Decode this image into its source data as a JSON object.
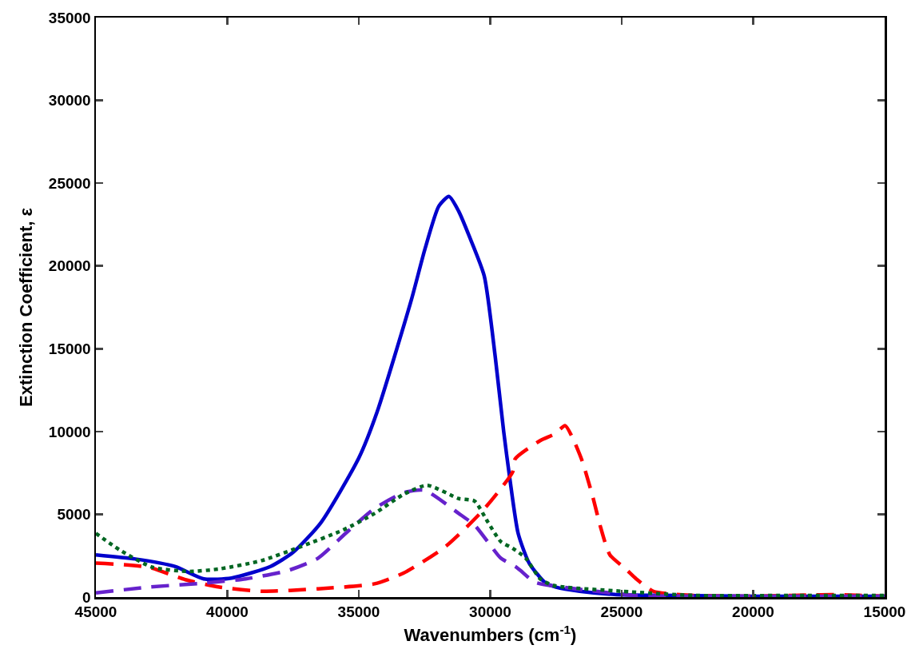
{
  "chart_data": {
    "type": "line",
    "xlabel": "Wavenumbers (cm$^{-1}$)",
    "ylabel": "Extinction Coefficient, ε",
    "xlim": [
      45000,
      15000
    ],
    "xticks": [
      45000,
      40000,
      35000,
      30000,
      25000,
      20000,
      15000
    ],
    "ylim": [
      0,
      35000
    ],
    "yticks": [
      0,
      5000,
      10000,
      15000,
      20000,
      25000,
      30000,
      35000
    ],
    "grid": false,
    "marker": "none",
    "series": [
      {
        "color": "#0000cc",
        "line_style": "solid",
        "x": [
          45000,
          43500,
          42000,
          40900,
          39840,
          38360,
          37500,
          36440,
          35000,
          34300,
          33010,
          32470,
          31960,
          31570,
          31200,
          30800,
          30230,
          29810,
          29490,
          29260,
          28940,
          28520,
          27900,
          27500,
          26600,
          25200,
          23000,
          20000,
          17500,
          15000
        ],
        "values": [
          2550,
          2300,
          1850,
          1100,
          1150,
          1850,
          2700,
          4500,
          8400,
          11200,
          17900,
          21100,
          23600,
          24200,
          23300,
          21800,
          19400,
          14500,
          10000,
          7200,
          3850,
          2050,
          850,
          600,
          350,
          150,
          100,
          50,
          50,
          50
        ]
      },
      {
        "color": "#ff0000",
        "line_style": "dashed",
        "x": [
          45000,
          43000,
          41600,
          40300,
          38700,
          36550,
          34400,
          33300,
          31700,
          30300,
          29150,
          29050,
          28100,
          27550,
          27150,
          26850,
          26500,
          26100,
          25800,
          25450,
          24850,
          24450,
          23800,
          22300,
          20000,
          17000,
          15000
        ],
        "values": [
          2050,
          1800,
          1050,
          600,
          350,
          500,
          800,
          1450,
          3050,
          5200,
          7550,
          8350,
          9450,
          9850,
          10350,
          9550,
          8200,
          6050,
          4200,
          2550,
          1700,
          1100,
          350,
          100,
          50,
          150,
          50
        ]
      },
      {
        "color": "#6622cc",
        "line_style": "dashed",
        "x": [
          45000,
          43000,
          40850,
          39300,
          37700,
          36550,
          35500,
          34400,
          33300,
          32500,
          31200,
          30600,
          30100,
          29600,
          29050,
          28850,
          28300,
          26500,
          24450,
          22000,
          18000,
          15000
        ],
        "values": [
          250,
          600,
          850,
          1100,
          1600,
          2350,
          3850,
          5350,
          6300,
          6450,
          5050,
          4350,
          3350,
          2350,
          1850,
          1600,
          900,
          450,
          100,
          50,
          50,
          50
        ]
      },
      {
        "color": "#006622",
        "line_style": "dotted",
        "x": [
          45000,
          44100,
          42850,
          41450,
          40300,
          38700,
          37200,
          35600,
          34400,
          33300,
          32400,
          31200,
          30600,
          30100,
          29600,
          29150,
          28650,
          28100,
          27600,
          25000,
          22250,
          18000,
          15000
        ],
        "values": [
          3850,
          2850,
          1800,
          1550,
          1700,
          2200,
          3050,
          4050,
          5050,
          6200,
          6750,
          5950,
          5800,
          4550,
          3350,
          2950,
          2350,
          1100,
          700,
          350,
          100,
          100,
          100
        ]
      }
    ]
  }
}
